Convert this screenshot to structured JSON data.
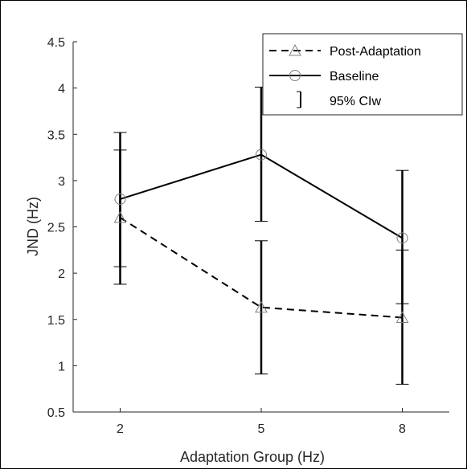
{
  "chart_data": {
    "type": "line",
    "title": "",
    "xlabel": "Adaptation Group (Hz)",
    "ylabel": "JND (Hz)",
    "x": [
      2,
      5,
      8
    ],
    "xticks": [
      "2",
      "5",
      "8"
    ],
    "xlim": [
      1,
      9
    ],
    "ylim": [
      0.5,
      4.5
    ],
    "yticks": [
      "0.5",
      "1",
      "1.5",
      "2",
      "2.5",
      "3",
      "3.5",
      "4",
      "4.5"
    ],
    "grid": false,
    "legend_position": "top-right",
    "series": [
      {
        "name": "Post-Adaptation",
        "style": "dashed",
        "marker": "triangle",
        "values": [
          2.6,
          1.63,
          1.52
        ],
        "ci_low": [
          1.88,
          0.91,
          0.8
        ],
        "ci_high": [
          3.33,
          2.35,
          2.25
        ]
      },
      {
        "name": "Baseline",
        "style": "solid",
        "marker": "circle",
        "values": [
          2.8,
          3.28,
          2.38
        ],
        "ci_low": [
          2.07,
          2.56,
          1.67
        ],
        "ci_high": [
          3.52,
          4.01,
          3.11
        ]
      }
    ],
    "legend": {
      "ci_entry": "95% CIw"
    },
    "colors": {
      "line": "#000000",
      "marker": "#7f7f7f",
      "axis": "#262626"
    }
  }
}
